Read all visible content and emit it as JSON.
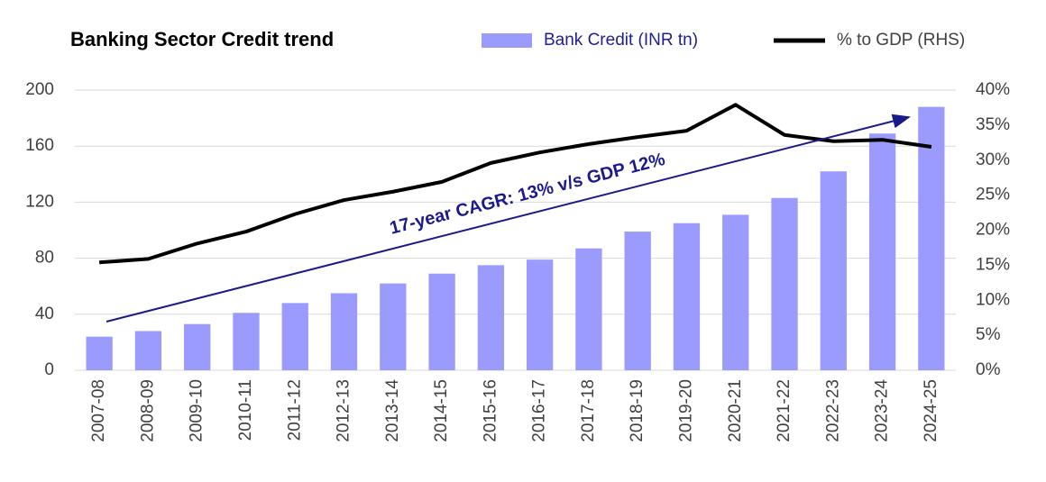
{
  "chart_data": {
    "type": "bar",
    "title": "Banking Sector Credit trend",
    "annotation": "17-year CAGR: 13% v/s GDP 12%",
    "categories": [
      "2007-08",
      "2008-09",
      "2009-10",
      "2010-11",
      "2011-12",
      "2012-13",
      "2013-14",
      "2014-15",
      "2015-16",
      "2016-17",
      "2017-18",
      "2018-19",
      "2019-20",
      "2020-21",
      "2021-22",
      "2022-23",
      "2023-24",
      "2024-25"
    ],
    "series": [
      {
        "name": "Bank Credit (INR tn)",
        "type": "bar",
        "color": "#9b9bfd",
        "legend_color": "#1f1f8f",
        "values": [
          24,
          28,
          33,
          41,
          48,
          55,
          62,
          69,
          75,
          79,
          87,
          99,
          105,
          111,
          123,
          142,
          169,
          188
        ]
      },
      {
        "name": "% to GDP (RHS)",
        "type": "line",
        "axis": "y2",
        "color": "#000000",
        "legend_color": "#404040",
        "values": [
          15.4,
          15.9,
          18.1,
          19.8,
          22.3,
          24.3,
          25.5,
          26.9,
          29.6,
          31.1,
          32.3,
          33.3,
          34.2,
          37.9,
          33.6,
          32.7,
          32.9,
          31.9
        ]
      }
    ],
    "ylim": [
      0,
      200
    ],
    "yticks": [
      0,
      40,
      80,
      120,
      160,
      200
    ],
    "y2lim": [
      0,
      40
    ],
    "y2ticks": [
      {
        "value": 0,
        "label": "0%"
      },
      {
        "value": 5,
        "label": "5%"
      },
      {
        "value": 10,
        "label": "10%"
      },
      {
        "value": 15,
        "label": "15%"
      },
      {
        "value": 20,
        "label": "20%"
      },
      {
        "value": 25,
        "label": "25%"
      },
      {
        "value": 30,
        "label": "30%"
      },
      {
        "value": 35,
        "label": "35%"
      },
      {
        "value": 40,
        "label": "40%"
      }
    ],
    "grid": true
  }
}
